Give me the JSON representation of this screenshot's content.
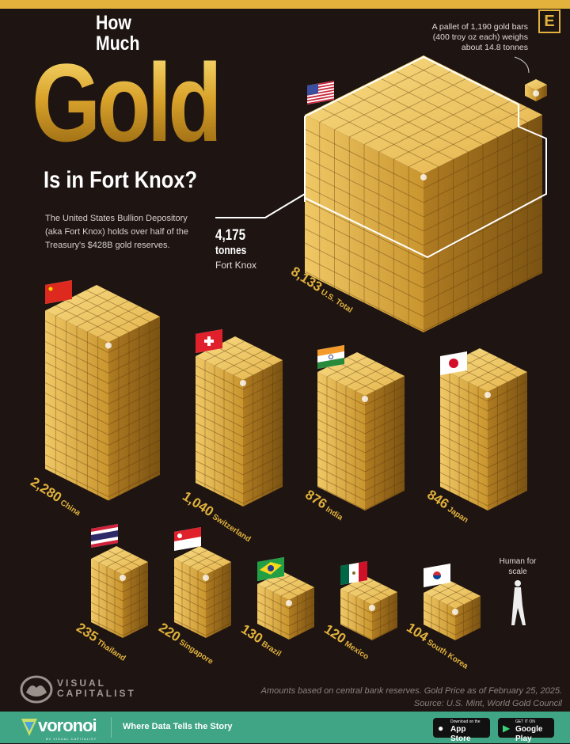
{
  "title": {
    "line1": "How Much",
    "line2": "Gold",
    "line3": "Is in Fort Knox?"
  },
  "description": "The United States Bullion Depository (aka Fort Knox) holds over half of the Treasury's $428B gold reserves.",
  "fort_knox": {
    "value": "4,175",
    "unit": "tonnes",
    "label": "Fort Knox"
  },
  "pallet_note": "A pallet of 1,190 gold bars (400 troy oz each) weighs about 14.8 tonnes",
  "human_note": "Human for scale",
  "brand_logo_letter": "E",
  "colors": {
    "background": "#1e1512",
    "gold": "#e2b23c",
    "footer": "#3fa584"
  },
  "chart_data": {
    "type": "bar",
    "style": "pictorial isometric gold cubes",
    "unit": "tonnes",
    "categories": [
      "U.S. Total",
      "China",
      "Switzerland",
      "India",
      "Japan",
      "Thailand",
      "Singapore",
      "Brazil",
      "Mexico",
      "South Korea"
    ],
    "values": [
      8133,
      2280,
      1040,
      876,
      846,
      235,
      220,
      130,
      120,
      104
    ],
    "value_labels": [
      "8,133",
      "2,280",
      "1,040",
      "876",
      "846",
      "235",
      "220",
      "130",
      "120",
      "104"
    ],
    "flags": [
      "us-flag-icon",
      "china-flag-icon",
      "switzerland-flag-icon",
      "india-flag-icon",
      "japan-flag-icon",
      "thailand-flag-icon",
      "singapore-flag-icon",
      "brazil-flag-icon",
      "mexico-flag-icon",
      "south-korea-flag-icon"
    ],
    "annotations": [
      {
        "category": "U.S. Total",
        "subset": "Fort Knox",
        "value": 4175
      }
    ]
  },
  "footer": {
    "note_line1": "Amounts based on central bank reserves. Gold Price as of February 25, 2025.",
    "note_line2": "Source: U.S. Mint, World Gold Council",
    "publisher": "VISUAL CAPITALIST",
    "voronoi": "voronoi",
    "voronoi_sub": "BY VISUAL CAPITALIST",
    "tagline": "Where Data Tells the Story",
    "app_store_small": "Download on the",
    "app_store": "App Store",
    "google_play_small": "GET IT ON",
    "google_play": "Google Play"
  }
}
